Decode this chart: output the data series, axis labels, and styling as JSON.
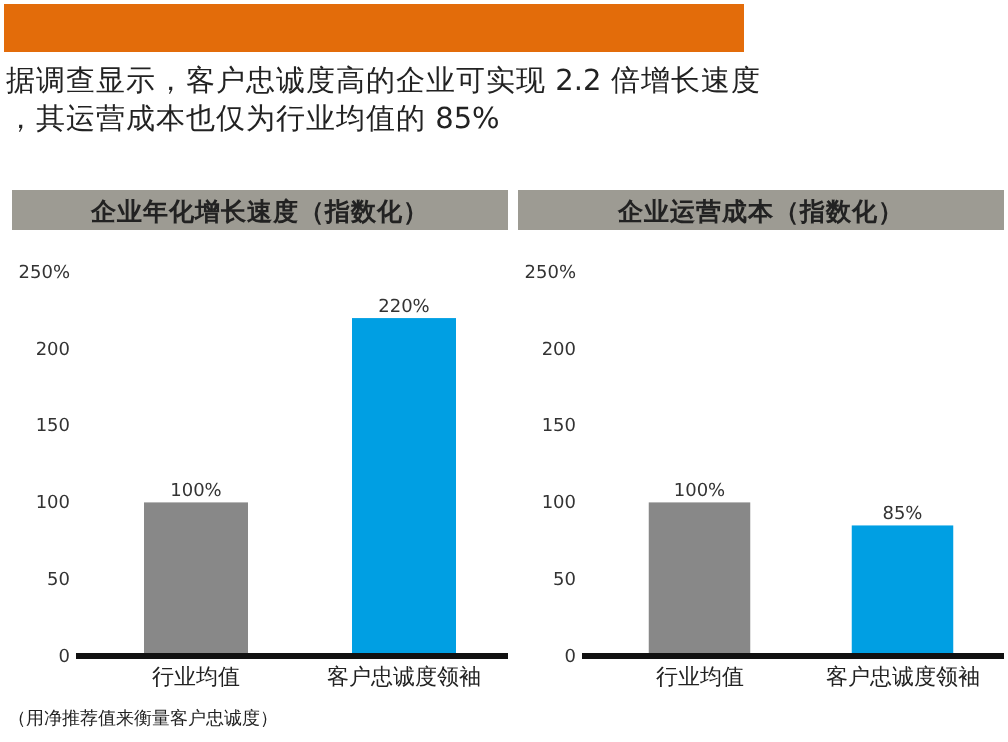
{
  "chart_data": [
    {
      "type": "other",
      "title": "据调查显示，客户忠诚度高的企业可实现 2.2 倍增长速度，其运营成本也仅为行业均值的 85%",
      "annotations": [
        "（用净推荐值来衡量客户忠诚度）"
      ]
    },
    {
      "type": "bar",
      "title": "企业年化增长速度（指数化）",
      "categories": [
        "行业均值",
        "客户忠诚度领袖"
      ],
      "values": [
        100,
        220
      ],
      "colors": [
        "#888888",
        "#009fe3"
      ],
      "value_labels": [
        "100%",
        "220%"
      ],
      "ylim": [
        0,
        250
      ],
      "yticks": [
        0,
        50,
        100,
        150,
        200,
        {
          "value": 250,
          "label": "250%"
        }
      ]
    },
    {
      "type": "bar",
      "title": "企业运营成本（指数化）",
      "categories": [
        "行业均值",
        "客户忠诚度领袖"
      ],
      "values": [
        100,
        85
      ],
      "colors": [
        "#888888",
        "#009fe3"
      ],
      "value_labels": [
        "100%",
        "85%"
      ],
      "ylim": [
        0,
        250
      ],
      "yticks": [
        0,
        50,
        100,
        150,
        200,
        {
          "value": 250,
          "label": "250%"
        }
      ]
    }
  ]
}
